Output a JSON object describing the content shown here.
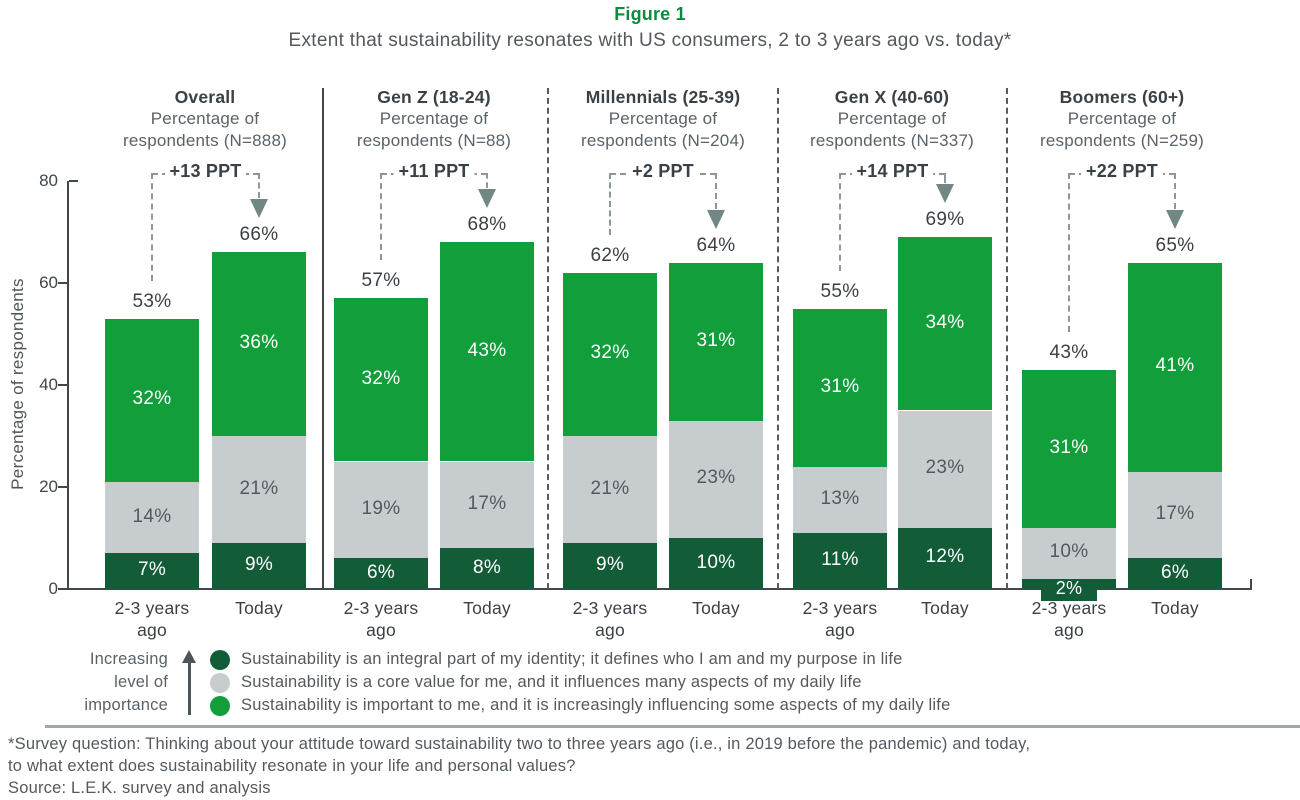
{
  "figure": {
    "title": "Figure 1",
    "subtitle": "Extent that sustainability resonates with US consumers, 2 to 3 years ago vs. today*"
  },
  "colors": {
    "title_green": "#0C8A3E",
    "segment_dark_green": "#135C38",
    "segment_gray": "#C7CDCF",
    "segment_green": "#119E3B",
    "text_dark": "#3A4146",
    "text_gray": "#53595E",
    "dash_gray": "#8F9699",
    "arrow_gray_green": "#708783",
    "axis": "#41484C",
    "divider": "#9FA8AB"
  },
  "chart_data": {
    "type": "bar",
    "stacked": true,
    "title": "Figure 1",
    "ylabel": "Percentage of respondents",
    "ylim": [
      0,
      80
    ],
    "yticks": [
      0,
      20,
      40,
      60,
      80
    ],
    "grid": false,
    "legend_position": "bottom",
    "series": [
      {
        "name": "Sustainability is an integral part of my identity; it defines who I am and my purpose in life",
        "color": "#135C38",
        "stack_position": "bottom"
      },
      {
        "name": "Sustainability is a core value for me, and it influences many aspects of my daily life",
        "color": "#C7CDCF",
        "stack_position": "middle"
      },
      {
        "name": "Sustainability is important to me, and it is increasingly influencing some aspects of my daily life",
        "color": "#119E3B",
        "stack_position": "top"
      }
    ],
    "panels": [
      {
        "name": "Overall",
        "n_label": "Percentage of respondents (N=888)",
        "ppt_change": "+13 PPT",
        "bars": [
          {
            "label": "2-3 years\nago",
            "total_label": "53%",
            "values": [
              7,
              14,
              32
            ]
          },
          {
            "label": "Today",
            "total_label": "66%",
            "values": [
              9,
              21,
              36
            ]
          }
        ]
      },
      {
        "name": "Gen Z (18-24)",
        "n_label": "Percentage of respondents (N=88)",
        "ppt_change": "+11 PPT",
        "bars": [
          {
            "label": "2-3 years\nago",
            "total_label": "57%",
            "values": [
              6,
              19,
              32
            ]
          },
          {
            "label": "Today",
            "total_label": "68%",
            "values": [
              8,
              17,
              43
            ]
          }
        ]
      },
      {
        "name": "Millennials (25-39)",
        "n_label": "Percentage of respondents (N=204)",
        "ppt_change": "+2 PPT",
        "bars": [
          {
            "label": "2-3 years\nago",
            "total_label": "62%",
            "values": [
              9,
              21,
              32
            ]
          },
          {
            "label": "Today",
            "total_label": "64%",
            "values": [
              10,
              23,
              31
            ]
          }
        ]
      },
      {
        "name": "Gen X (40-60)",
        "n_label": "Percentage of respondents (N=337)",
        "ppt_change": "+14 PPT",
        "bars": [
          {
            "label": "2-3 years\nago",
            "total_label": "55%",
            "values": [
              11,
              13,
              31
            ]
          },
          {
            "label": "Today",
            "total_label": "69%",
            "values": [
              12,
              23,
              34
            ]
          }
        ]
      },
      {
        "name": "Boomers (60+)",
        "n_label": "Percentage of respondents (N=259)",
        "ppt_change": "+22 PPT",
        "bars": [
          {
            "label": "2-3 years\nago",
            "total_label": "43%",
            "values": [
              2,
              10,
              31
            ]
          },
          {
            "label": "Today",
            "total_label": "65%",
            "values": [
              6,
              17,
              41
            ]
          }
        ]
      }
    ]
  },
  "legend": {
    "caption": "Increasing level of importance"
  },
  "footnote": {
    "line1": "*Survey question: Thinking about your attitude toward sustainability two to three years ago (i.e., in 2019 before the pandemic) and today,",
    "line2": "to what extent does sustainability resonate in your life and personal values?",
    "source": "Source: L.E.K. survey and analysis"
  }
}
